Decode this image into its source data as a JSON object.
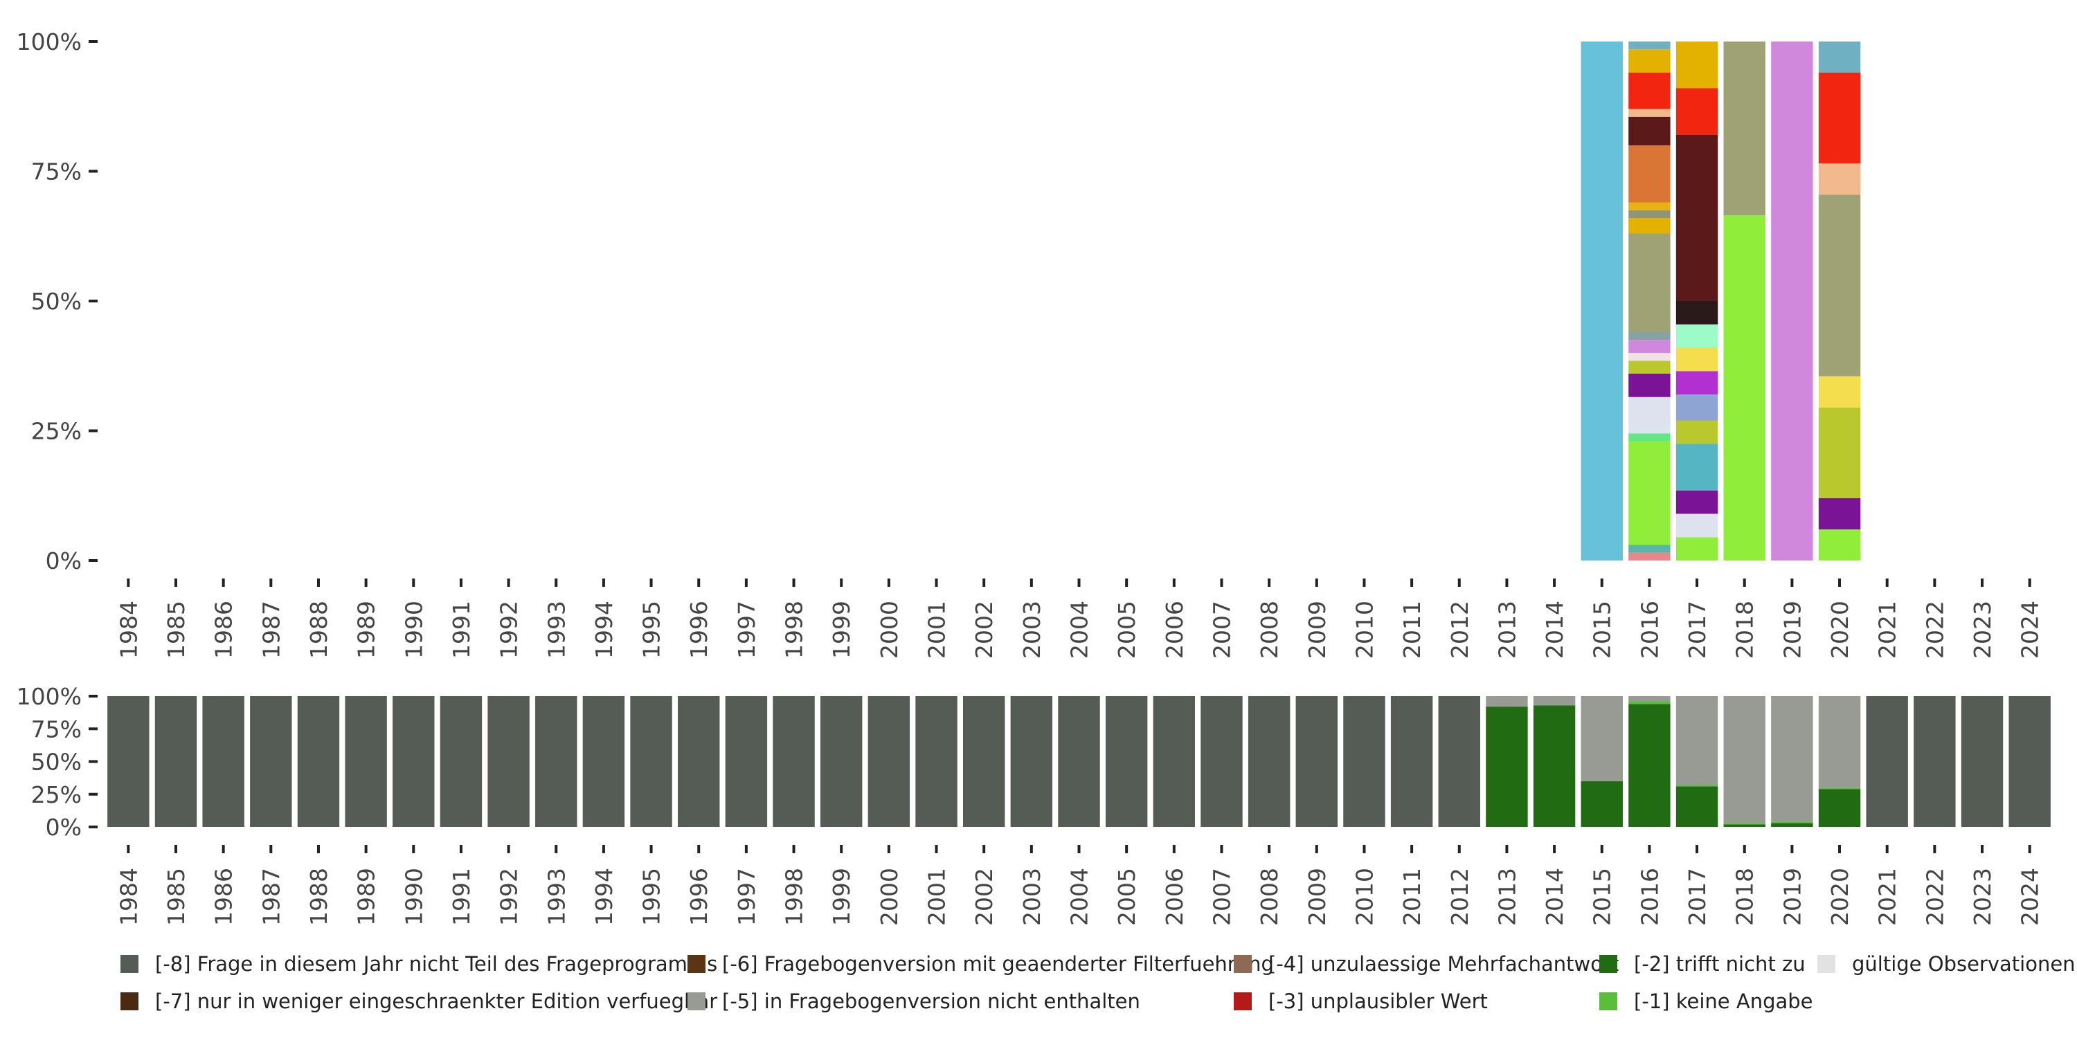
{
  "chart_data": [
    {
      "type": "bar",
      "stacked": true,
      "normalized": true,
      "categories": [
        "1984",
        "1985",
        "1986",
        "1987",
        "1988",
        "1989",
        "1990",
        "1991",
        "1992",
        "1993",
        "1994",
        "1995",
        "1996",
        "1997",
        "1998",
        "1999",
        "2000",
        "2001",
        "2002",
        "2003",
        "2004",
        "2005",
        "2006",
        "2007",
        "2008",
        "2009",
        "2010",
        "2011",
        "2012",
        "2013",
        "2014",
        "2015",
        "2016",
        "2017",
        "2018",
        "2019",
        "2020",
        "2021",
        "2022",
        "2023",
        "2024"
      ],
      "y_ticks": [
        "0%",
        "25%",
        "50%",
        "75%",
        "100%"
      ],
      "ylim": [
        0,
        100
      ],
      "stacks": {
        "2015": [
          {
            "value": 100,
            "color": "#67c1db"
          }
        ],
        "2016": [
          {
            "value": 1.5,
            "color": "#e8868a"
          },
          {
            "value": 1.5,
            "color": "#59b5a8"
          },
          {
            "value": 20,
            "color": "#90ee3a"
          },
          {
            "value": 1.5,
            "color": "#63e686"
          },
          {
            "value": 1.5,
            "color": "#dde3ef"
          },
          {
            "value": 5.5,
            "color": "#dee1ee"
          },
          {
            "value": 4.5,
            "color": "#7a1395"
          },
          {
            "value": 2.5,
            "color": "#b9c92d"
          },
          {
            "value": 1.5,
            "color": "#f1e0e4"
          },
          {
            "value": 2.5,
            "color": "#d088dd"
          },
          {
            "value": 1.5,
            "color": "#88a1a4"
          },
          {
            "value": 19,
            "color": "#9fa275"
          },
          {
            "value": 3,
            "color": "#e3b100"
          },
          {
            "value": 1.5,
            "color": "#8f9579"
          },
          {
            "value": 1.5,
            "color": "#e8b213"
          },
          {
            "value": 11,
            "color": "#d97636"
          },
          {
            "value": 5.5,
            "color": "#5b1919"
          },
          {
            "value": 1.5,
            "color": "#f2b98c"
          },
          {
            "value": 7,
            "color": "#f22511"
          },
          {
            "value": 4.5,
            "color": "#e3b100"
          },
          {
            "value": 1.5,
            "color": "#6fb0c2"
          }
        ],
        "2017": [
          {
            "value": 4.5,
            "color": "#90ee3a"
          },
          {
            "value": 4.5,
            "color": "#dee1ee"
          },
          {
            "value": 4.5,
            "color": "#7a1395"
          },
          {
            "value": 9,
            "color": "#55b5c2"
          },
          {
            "value": 4.5,
            "color": "#b9c92d"
          },
          {
            "value": 5,
            "color": "#8ea4d2"
          },
          {
            "value": 4.5,
            "color": "#b22fd1"
          },
          {
            "value": 4.5,
            "color": "#f5de4d"
          },
          {
            "value": 4.5,
            "color": "#9dfbc7"
          },
          {
            "value": 4.5,
            "color": "#2b1a1a"
          },
          {
            "value": 32,
            "color": "#5b1919"
          },
          {
            "value": 9,
            "color": "#f22511"
          },
          {
            "value": 9,
            "color": "#e3b100"
          }
        ],
        "2018": [
          {
            "value": 66.5,
            "color": "#90ee3a"
          },
          {
            "value": 33.5,
            "color": "#9fa275"
          }
        ],
        "2019": [
          {
            "value": 100,
            "color": "#d088dd"
          }
        ],
        "2020": [
          {
            "value": 6,
            "color": "#90ee3a"
          },
          {
            "value": 6,
            "color": "#7a1395"
          },
          {
            "value": 17.5,
            "color": "#b9c92d"
          },
          {
            "value": 6,
            "color": "#f5de4d"
          },
          {
            "value": 35,
            "color": "#9fa275"
          },
          {
            "value": 6,
            "color": "#f2b98c"
          },
          {
            "value": 17.5,
            "color": "#f22511"
          },
          {
            "value": 6,
            "color": "#6fb0c2"
          }
        ]
      }
    },
    {
      "type": "bar",
      "stacked": true,
      "normalized": true,
      "categories": [
        "1984",
        "1985",
        "1986",
        "1987",
        "1988",
        "1989",
        "1990",
        "1991",
        "1992",
        "1993",
        "1994",
        "1995",
        "1996",
        "1997",
        "1998",
        "1999",
        "2000",
        "2001",
        "2002",
        "2003",
        "2004",
        "2005",
        "2006",
        "2007",
        "2008",
        "2009",
        "2010",
        "2011",
        "2012",
        "2013",
        "2014",
        "2015",
        "2016",
        "2017",
        "2018",
        "2019",
        "2020",
        "2021",
        "2022",
        "2023",
        "2024"
      ],
      "y_ticks": [
        "0%",
        "25%",
        "50%",
        "75%",
        "100%"
      ],
      "ylim": [
        0,
        100
      ],
      "series": [
        {
          "name": "[-8] Frage in diesem Jahr nicht Teil des Frageprogramms",
          "color": "#555b55",
          "values": [
            100,
            100,
            100,
            100,
            100,
            100,
            100,
            100,
            100,
            100,
            100,
            100,
            100,
            100,
            100,
            100,
            100,
            100,
            100,
            100,
            100,
            100,
            100,
            100,
            100,
            100,
            100,
            100,
            100,
            0,
            0,
            0,
            0,
            0,
            0,
            0,
            0,
            100,
            100,
            100,
            100
          ]
        },
        {
          "name": "[-2] trifft nicht zu",
          "color": "#216c12",
          "values": [
            0,
            0,
            0,
            0,
            0,
            0,
            0,
            0,
            0,
            0,
            0,
            0,
            0,
            0,
            0,
            0,
            0,
            0,
            0,
            0,
            0,
            0,
            0,
            0,
            0,
            0,
            0,
            0,
            0,
            92,
            93,
            35,
            94,
            31,
            2,
            3,
            29,
            0,
            0,
            0,
            0
          ]
        },
        {
          "name": "[-1] keine Angabe",
          "color": "#5bbe3b",
          "values": [
            0,
            0,
            0,
            0,
            0,
            0,
            0,
            0,
            0,
            0,
            0,
            0,
            0,
            0,
            0,
            0,
            0,
            0,
            0,
            0,
            0,
            0,
            0,
            0,
            0,
            0,
            0,
            0,
            0,
            0,
            0,
            0,
            2,
            1,
            1,
            1,
            1,
            0,
            0,
            0,
            0
          ]
        },
        {
          "name": "[-5] in Fragebogenversion nicht enthalten",
          "color": "#979b94",
          "values": [
            0,
            0,
            0,
            0,
            0,
            0,
            0,
            0,
            0,
            0,
            0,
            0,
            0,
            0,
            0,
            0,
            0,
            0,
            0,
            0,
            0,
            0,
            0,
            0,
            0,
            0,
            0,
            0,
            0,
            8,
            7,
            65,
            4,
            68,
            97,
            96,
            70,
            0,
            0,
            0,
            0
          ]
        }
      ]
    }
  ],
  "legend": [
    {
      "label": "[-8] Frage in diesem Jahr nicht Teil des Frageprogramms",
      "color": "#555b55"
    },
    {
      "label": "[-7] nur in weniger eingeschraenkter Edition verfuegbar",
      "color": "#4a2a12"
    },
    {
      "label": "[-6] Fragebogenversion mit geaenderter Filterfuehrung",
      "color": "#5a3413"
    },
    {
      "label": "[-5] in Fragebogenversion nicht enthalten",
      "color": "#979b94"
    },
    {
      "label": "[-4] unzulaessige Mehrfachantwort",
      "color": "#8e6a55"
    },
    {
      "label": "[-3] unplausibler Wert",
      "color": "#b31b1b"
    },
    {
      "label": "[-2] trifft nicht zu",
      "color": "#216c12"
    },
    {
      "label": "[-1] keine Angabe",
      "color": "#5bbe3b"
    },
    {
      "label": "gültige Observationen",
      "color": "#e2e2e2"
    }
  ]
}
